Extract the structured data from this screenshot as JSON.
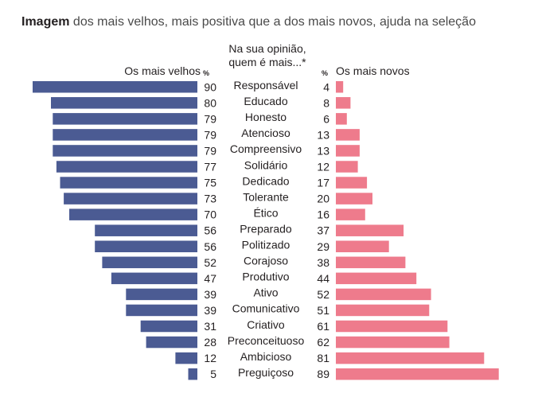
{
  "title": {
    "bold": "Imagem",
    "rest": "dos mais velhos, mais positiva que a dos mais novos, ajuda na seleção"
  },
  "question_lines": [
    "Na sua opinião,",
    "quem é mais...*"
  ],
  "colors": {
    "old": "#4b5b93",
    "young": "#ee7b8c",
    "text": "#231f20"
  },
  "chart_data": {
    "type": "bar",
    "orientation": "horizontal-butterfly",
    "title": "Imagem dos mais velhos, mais positiva que a dos mais novos, ajuda na seleção",
    "unit": "%",
    "categories": [
      "Responsável",
      "Educado",
      "Honesto",
      "Atencioso",
      "Compreensivo",
      "Solidário",
      "Dedicado",
      "Tolerante",
      "Ético",
      "Preparado",
      "Politizado",
      "Corajoso",
      "Produtivo",
      "Ativo",
      "Comunicativo",
      "Criativo",
      "Preconceituoso",
      "Ambicioso",
      "Preguiçoso"
    ],
    "series": [
      {
        "name": "Os mais velhos",
        "values": [
          90,
          80,
          79,
          79,
          79,
          77,
          75,
          73,
          70,
          56,
          56,
          52,
          47,
          39,
          39,
          31,
          28,
          12,
          5
        ]
      },
      {
        "name": "Os mais novos",
        "values": [
          4,
          8,
          6,
          13,
          13,
          12,
          17,
          20,
          16,
          37,
          29,
          38,
          44,
          52,
          51,
          61,
          62,
          81,
          89
        ]
      }
    ],
    "xlim": [
      0,
      90
    ]
  }
}
